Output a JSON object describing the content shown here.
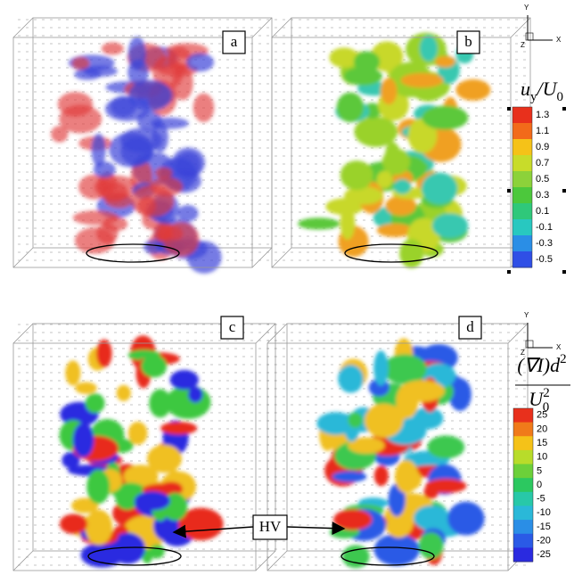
{
  "panels": [
    {
      "label": "a"
    },
    {
      "label": "b"
    },
    {
      "label": "c"
    },
    {
      "label": "d"
    }
  ],
  "triads": [
    {
      "x": "X",
      "y": "Y",
      "z": "Z"
    },
    {
      "x": "X",
      "y": "Y",
      "z": "Z"
    }
  ],
  "colorbars": [
    {
      "numerator": [
        {
          "text": "u"
        },
        {
          "text": "y",
          "sub": true
        },
        {
          "text": "/"
        },
        {
          "text": "U"
        },
        {
          "text": "0",
          "sub": true
        }
      ],
      "ticks": [
        1.3,
        1.1,
        0.9,
        0.7,
        0.5,
        0.3,
        0.1,
        -0.1,
        -0.3,
        -0.5
      ],
      "colors": [
        "#e8301c",
        "#f26a1a",
        "#f5c218",
        "#c8dc2a",
        "#8cd23a",
        "#4cc83c",
        "#2fc87a",
        "#28c8c0",
        "#2a8ee6",
        "#2f4fe6"
      ]
    },
    {
      "numerator": [
        {
          "text": "(∇I)d"
        },
        {
          "text": "2",
          "sup": true
        }
      ],
      "denominator": [
        {
          "text": "U"
        },
        {
          "text": "2",
          "sup": true
        },
        {
          "text": "0",
          "sub": true
        }
      ],
      "ticks": [
        25,
        20,
        15,
        10,
        5,
        0,
        -5,
        -10,
        -15,
        -20,
        -25
      ],
      "colors": [
        "#e8301c",
        "#f07a1a",
        "#f5c218",
        "#b8dc2a",
        "#6cd03a",
        "#2cc860",
        "#28c8a8",
        "#2ab8d8",
        "#2a8ee6",
        "#2a5ae6",
        "#2a2ae0"
      ]
    }
  ],
  "annotation": "HV"
}
